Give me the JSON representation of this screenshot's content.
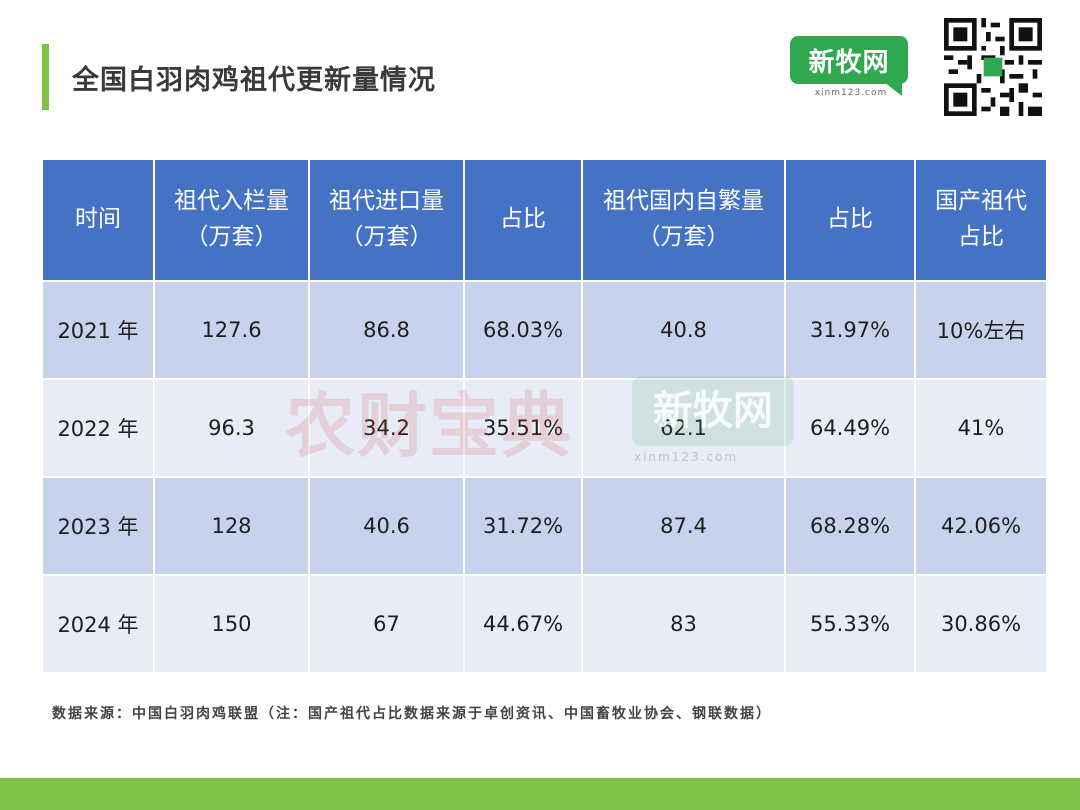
{
  "page": {
    "title": "全国白羽肉鸡祖代更新量情况",
    "footnote": "数据来源：中国白羽肉鸡联盟（注：国产祖代占比数据来源于卓创资讯、中国畜牧业协会、钢联数据）"
  },
  "logo": {
    "text": "新牧网",
    "url": "xinm123.com",
    "color": "#2fa84f"
  },
  "watermarks": {
    "w1": "农财宝典",
    "w2": "新牧网",
    "w2_url": "xinm123.com"
  },
  "colors": {
    "accent": "#7dc242",
    "header": "#4472c4",
    "row_dark": "#c7d3ec",
    "row_light": "#e7ecf6"
  },
  "table": {
    "headers": [
      [
        "时间"
      ],
      [
        "祖代入栏量",
        "（万套）"
      ],
      [
        "祖代进口量",
        "（万套）"
      ],
      [
        "占比"
      ],
      [
        "祖代国内自繁量",
        "（万套）"
      ],
      [
        "占比"
      ],
      [
        "国产祖代",
        "占比"
      ]
    ],
    "rows": [
      [
        "2021 年",
        "127.6",
        "86.8",
        "68.03%",
        "40.8",
        "31.97%",
        "10%左右"
      ],
      [
        "2022 年",
        "96.3",
        "34.2",
        "35.51%",
        "62.1",
        "64.49%",
        "41%"
      ],
      [
        "2023 年",
        "128",
        "40.6",
        "31.72%",
        "87.4",
        "68.28%",
        "42.06%"
      ],
      [
        "2024 年",
        "150",
        "67",
        "44.67%",
        "83",
        "55.33%",
        "30.86%"
      ]
    ]
  }
}
